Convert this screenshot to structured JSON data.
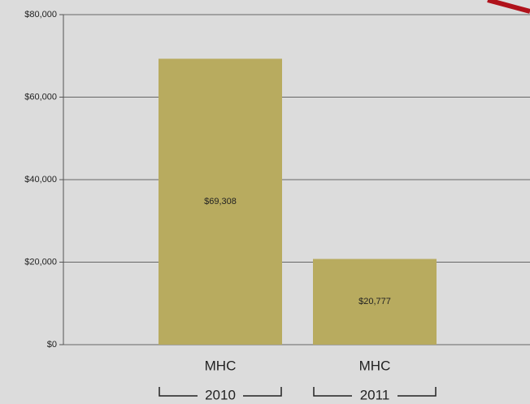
{
  "chart_data": {
    "type": "bar",
    "categories": [
      "MHC",
      "MHC"
    ],
    "groups": [
      "2010",
      "2011"
    ],
    "values": [
      69308,
      20777
    ],
    "value_labels": [
      "$69,308",
      "$20,777"
    ],
    "color": "#b8ab5f",
    "ylim": [
      0,
      80000
    ],
    "yticks": [
      {
        "value": 0,
        "label": "$0"
      },
      {
        "value": 20000,
        "label": "$20,000"
      },
      {
        "value": 40000,
        "label": "$40,000"
      },
      {
        "value": 60000,
        "label": "$60,000"
      },
      {
        "value": 80000,
        "label": "$80,000"
      }
    ],
    "grid": true
  }
}
